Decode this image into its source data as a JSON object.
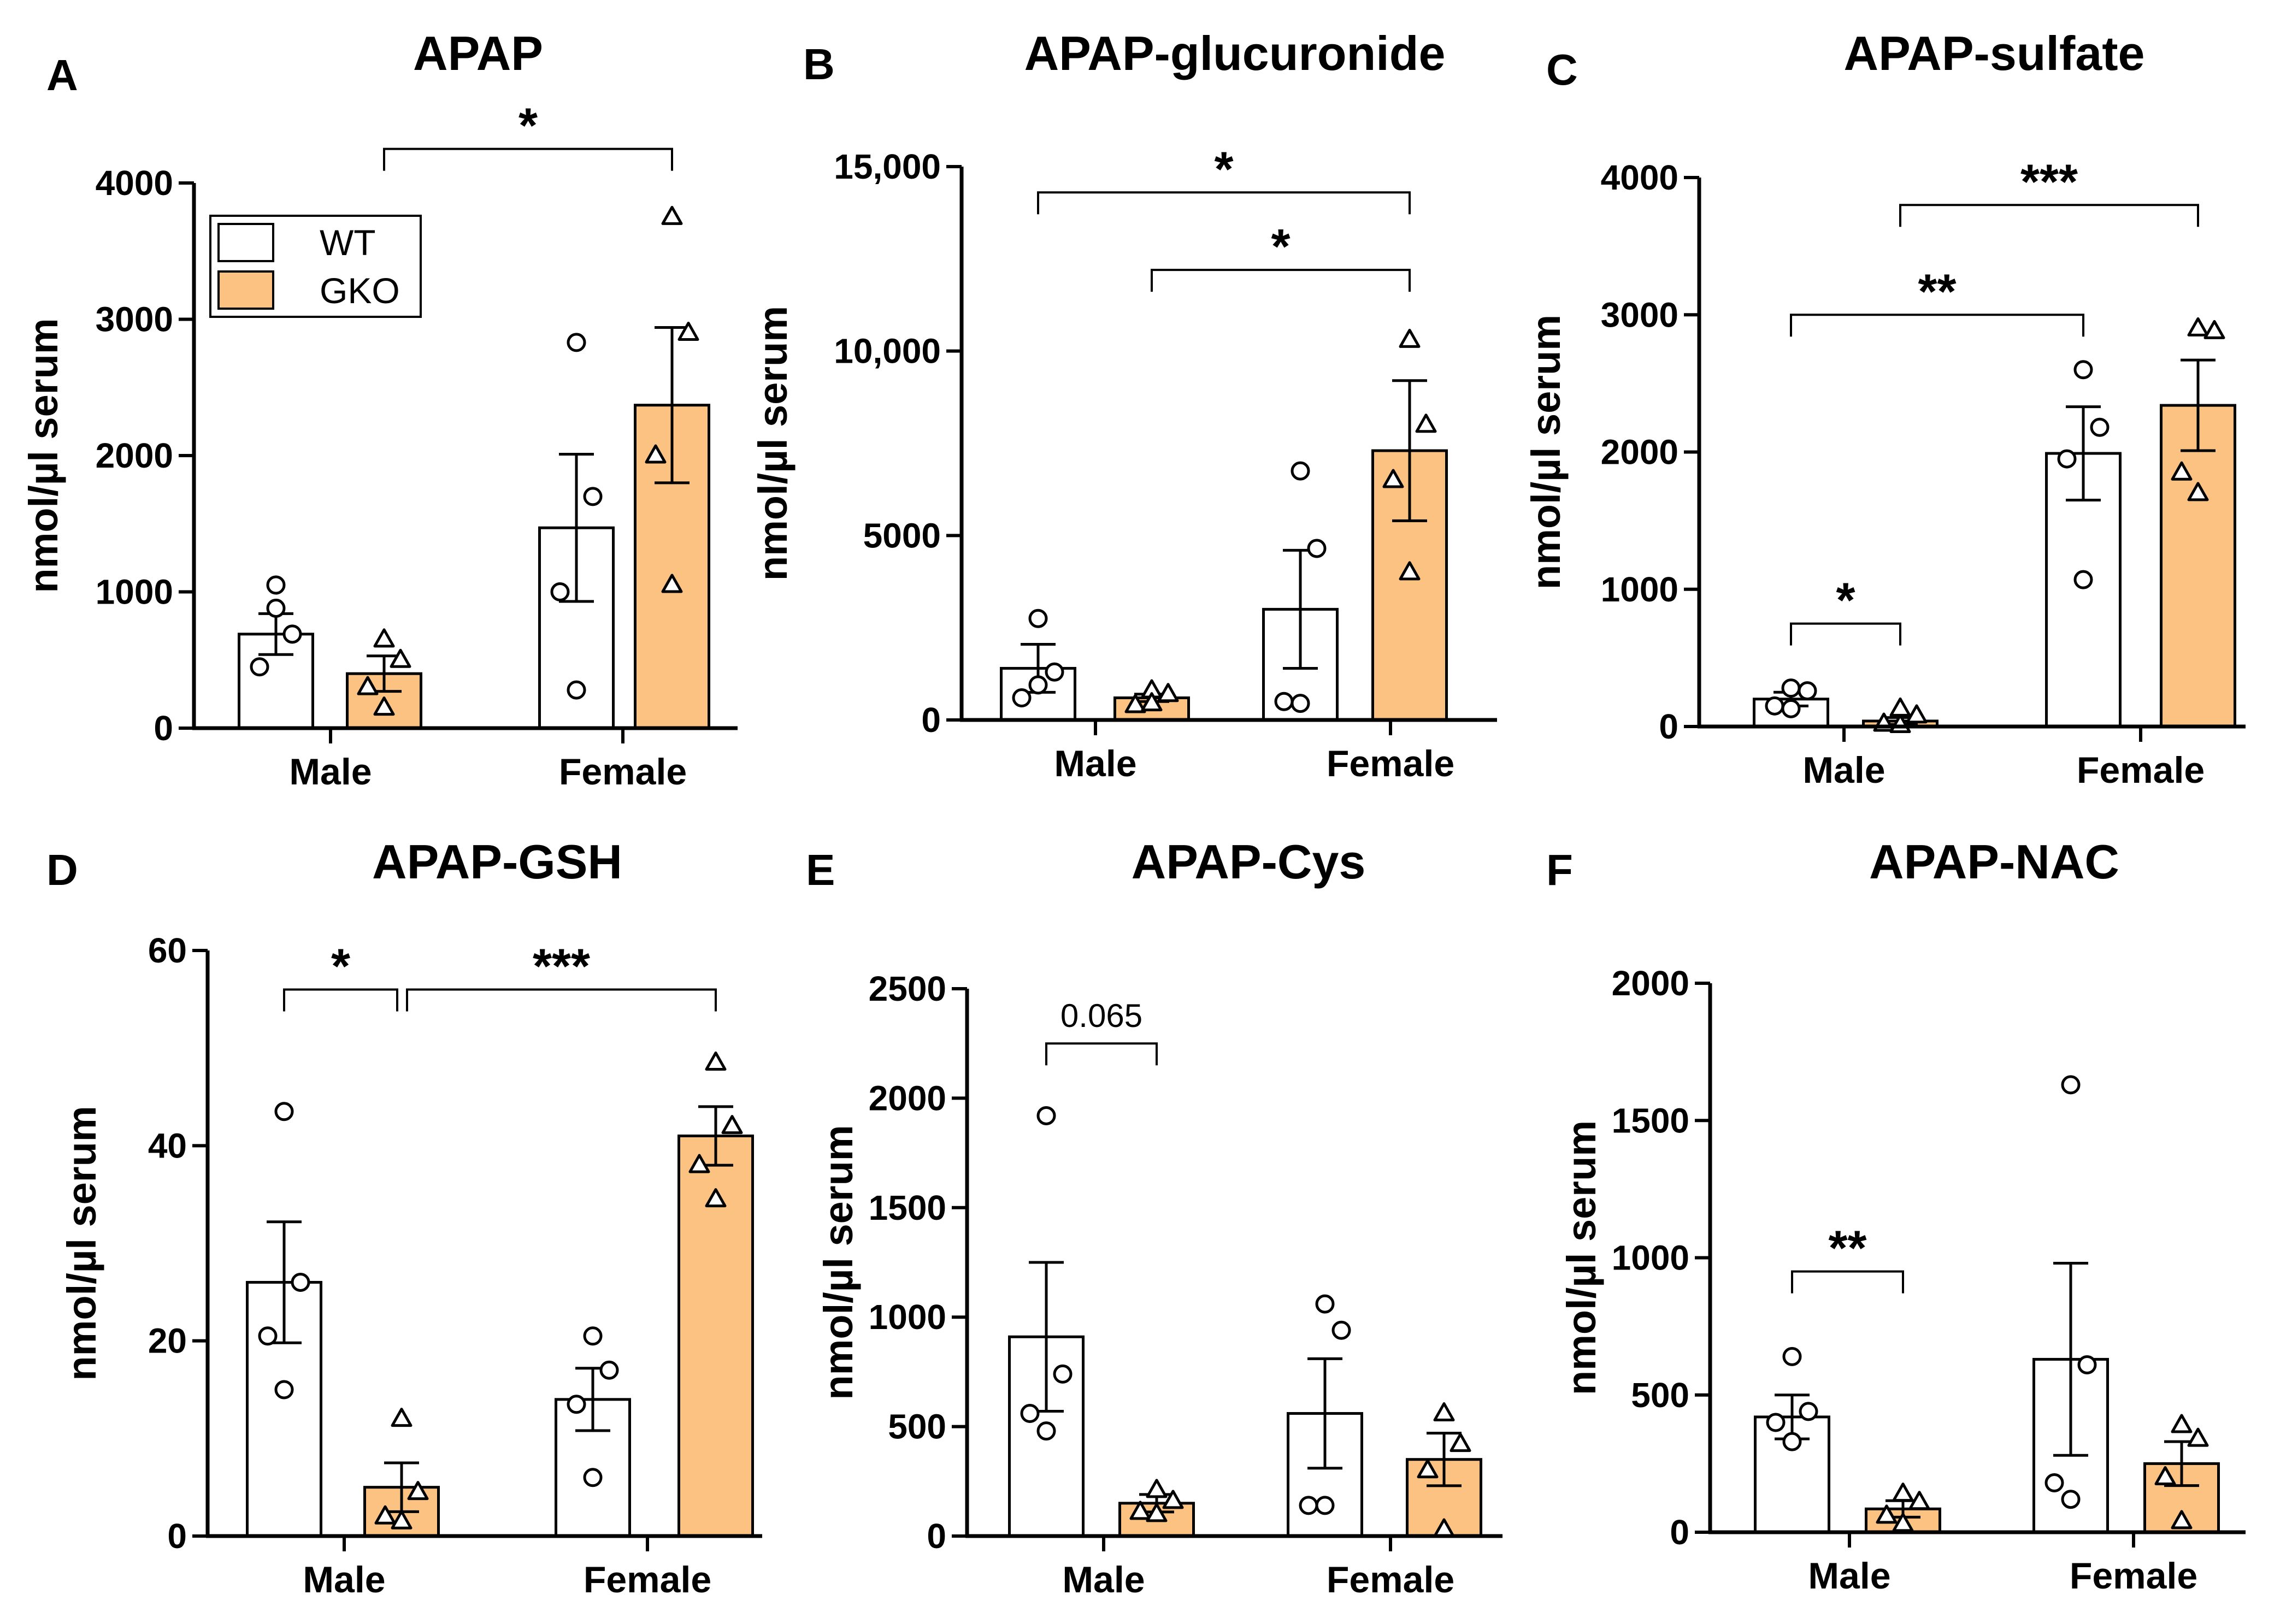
{
  "chart_data": [
    {
      "panel": "A",
      "title": "APAP",
      "type": "bar",
      "ylabel": "nmol/µl serum",
      "ylim": [
        0,
        4000
      ],
      "yticks": [
        0,
        1000,
        2000,
        3000,
        4000
      ],
      "yticklabels": [
        "0",
        "1000",
        "2000",
        "3000",
        "4000"
      ],
      "categories": [
        "Male",
        "Female"
      ],
      "legend": {
        "position": "top-left",
        "entries": [
          "WT",
          "GKO"
        ]
      },
      "series": [
        {
          "name": "WT",
          "color": "#ffffff",
          "marker": "circle",
          "means": [
            690,
            1470
          ],
          "sem": [
            150,
            540
          ],
          "points": [
            [
              1050,
              690,
              450,
              880
            ],
            [
              2830,
              1700,
              1000,
              280
            ]
          ]
        },
        {
          "name": "GKO",
          "color": "#fbc281",
          "marker": "triangle",
          "means": [
            400,
            2370
          ],
          "sem": [
            130,
            570
          ],
          "points": [
            [
              650,
              500,
              300,
              150
            ],
            [
              3750,
              2900,
              2000,
              1050
            ]
          ]
        }
      ],
      "significance": [
        {
          "from": "Male-GKO",
          "to": "Female-GKO",
          "label": "*",
          "y": 4250
        }
      ]
    },
    {
      "panel": "B",
      "title": "APAP-glucuronide",
      "type": "bar",
      "ylabel": "nmol/µl serum",
      "ylim": [
        0,
        15000
      ],
      "yticks": [
        0,
        5000,
        10000,
        15000
      ],
      "yticklabels": [
        "0",
        "5000",
        "10,000",
        "15,000"
      ],
      "categories": [
        "Male",
        "Female"
      ],
      "series": [
        {
          "name": "WT",
          "color": "#ffffff",
          "marker": "circle",
          "means": [
            1400,
            3000
          ],
          "sem": [
            650,
            1600
          ],
          "points": [
            [
              2750,
              1300,
              600,
              950
            ],
            [
              6750,
              4650,
              500,
              450
            ]
          ]
        },
        {
          "name": "GKO",
          "color": "#fbc281",
          "marker": "triangle",
          "means": [
            600,
            7300
          ],
          "sem": [
            100,
            1900
          ],
          "points": [
            [
              800,
              700,
              400,
              450
            ],
            [
              10300,
              8000,
              6500,
              4000
            ]
          ]
        }
      ],
      "significance": [
        {
          "from": "Male-WT",
          "to": "Female-GKO",
          "label": "*",
          "y": 14300
        },
        {
          "from": "Male-GKO",
          "to": "Female-GKO",
          "label": "*",
          "y": 12200
        }
      ]
    },
    {
      "panel": "C",
      "title": "APAP-sulfate",
      "type": "bar",
      "ylabel": "nmol/µl serum",
      "ylim": [
        0,
        4000
      ],
      "yticks": [
        0,
        1000,
        2000,
        3000,
        4000
      ],
      "yticklabels": [
        "0",
        "1000",
        "2000",
        "3000",
        "4000"
      ],
      "categories": [
        "Male",
        "Female"
      ],
      "series": [
        {
          "name": "WT",
          "color": "#ffffff",
          "marker": "circle",
          "means": [
            200,
            1990
          ],
          "sem": [
            50,
            340
          ],
          "points": [
            [
              280,
              260,
              150,
              130
            ],
            [
              2600,
              2180,
              1950,
              1070
            ]
          ]
        },
        {
          "name": "GKO",
          "color": "#fbc281",
          "marker": "triangle",
          "means": [
            40,
            2340
          ],
          "sem": [
            25,
            330
          ],
          "points": [
            [
              130,
              80,
              20,
              10
            ],
            [
              2900,
              2880,
              1850,
              1700
            ]
          ]
        }
      ],
      "significance": [
        {
          "from": "Male-WT",
          "to": "Male-GKO",
          "label": "*",
          "y": 750
        },
        {
          "from": "Male-WT",
          "to": "Female-WT",
          "label": "**",
          "y": 3000
        },
        {
          "from": "Male-GKO",
          "to": "Female-GKO",
          "label": "***",
          "y": 3800
        }
      ]
    },
    {
      "panel": "D",
      "title": "APAP-GSH",
      "type": "bar",
      "ylabel": "nmol/µl serum",
      "ylim": [
        0,
        60
      ],
      "yticks": [
        0,
        20,
        40,
        60
      ],
      "yticklabels": [
        "0",
        "20",
        "40",
        "60"
      ],
      "categories": [
        "Male",
        "Female"
      ],
      "series": [
        {
          "name": "WT",
          "color": "#ffffff",
          "marker": "circle",
          "means": [
            26,
            14
          ],
          "sem": [
            6.2,
            3.2
          ],
          "points": [
            [
              43.5,
              26,
              20.5,
              15
            ],
            [
              20.5,
              17,
              13.5,
              6
            ]
          ]
        },
        {
          "name": "GKO",
          "color": "#fbc281",
          "marker": "triangle",
          "means": [
            5,
            41
          ],
          "sem": [
            2.5,
            3
          ],
          "points": [
            [
              12,
              4.5,
              2,
              1.5
            ],
            [
              48.5,
              42,
              38,
              34.5
            ]
          ]
        }
      ],
      "significance": [
        {
          "from": "Male-WT",
          "to": "Male-GKO",
          "label": "*",
          "y": 56
        },
        {
          "from": "Male-GKO",
          "to": "Female-GKO",
          "label": "***",
          "y": 56
        }
      ]
    },
    {
      "panel": "E",
      "title": "APAP-Cys",
      "type": "bar",
      "ylabel": "nmol/µl serum",
      "ylim": [
        0,
        2500
      ],
      "yticks": [
        0,
        500,
        1000,
        1500,
        2000,
        2500
      ],
      "yticklabels": [
        "0",
        "500",
        "1000",
        "1500",
        "2000",
        "2500"
      ],
      "categories": [
        "Male",
        "Female"
      ],
      "series": [
        {
          "name": "WT",
          "color": "#ffffff",
          "marker": "circle",
          "means": [
            910,
            560
          ],
          "sem": [
            340,
            250
          ],
          "points": [
            [
              1920,
              740,
              560,
              480
            ],
            [
              1060,
              940,
              140,
              140
            ]
          ]
        },
        {
          "name": "GKO",
          "color": "#fbc281",
          "marker": "triangle",
          "means": [
            150,
            350
          ],
          "sem": [
            40,
            120
          ],
          "points": [
            [
              210,
              160,
              110,
              100
            ],
            [
              560,
              420,
              300,
              30
            ]
          ]
        }
      ],
      "significance": [
        {
          "from": "Male-WT",
          "to": "Male-GKO",
          "label": "0.065",
          "y": 2250
        }
      ]
    },
    {
      "panel": "F",
      "title": "APAP-NAC",
      "type": "bar",
      "ylabel": "nmol/µl serum",
      "ylim": [
        0,
        2000
      ],
      "yticks": [
        0,
        500,
        1000,
        1500,
        2000
      ],
      "yticklabels": [
        "0",
        "500",
        "1000",
        "1500",
        "2000"
      ],
      "categories": [
        "Male",
        "Female"
      ],
      "series": [
        {
          "name": "WT",
          "color": "#ffffff",
          "marker": "circle",
          "means": [
            420,
            630
          ],
          "sem": [
            80,
            350
          ],
          "points": [
            [
              640,
              440,
              400,
              330
            ],
            [
              1630,
              610,
              180,
              120
            ]
          ]
        },
        {
          "name": "GKO",
          "color": "#fbc281",
          "marker": "triangle",
          "means": [
            85,
            250
          ],
          "sem": [
            30,
            80
          ],
          "points": [
            [
              140,
              110,
              60,
              30
            ],
            [
              390,
              340,
              200,
              40
            ]
          ]
        }
      ],
      "significance": [
        {
          "from": "Male-WT",
          "to": "Male-GKO",
          "label": "**",
          "y": 950
        }
      ]
    }
  ]
}
